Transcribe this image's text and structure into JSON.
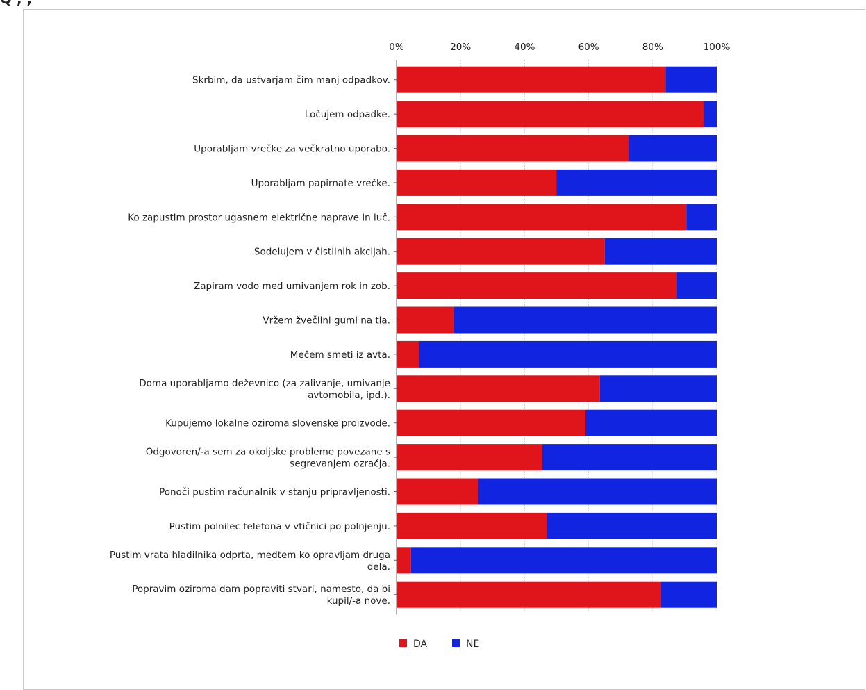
{
  "top_fragment": "Q        , , ",
  "colors": {
    "da": "#e0141b",
    "ne": "#1125e0",
    "grid": "#cfcfcf"
  },
  "chart_data": {
    "type": "bar",
    "orientation": "horizontal",
    "stacked": true,
    "title": "",
    "xlabel": "",
    "ylabel": "",
    "xlim": [
      0,
      100
    ],
    "x_ticks": [
      "0%",
      "20%",
      "40%",
      "60%",
      "80%",
      "100%"
    ],
    "grid": true,
    "legend_position": "bottom",
    "categories": [
      [
        "Skrbim, da ustvarjam čim manj odpadkov."
      ],
      [
        "Ločujem odpadke."
      ],
      [
        "Uporabljam vrečke za večkratno uporabo."
      ],
      [
        "Uporabljam papirnate vrečke."
      ],
      [
        "Ko zapustim prostor ugasnem električne naprave in luč."
      ],
      [
        "Sodelujem v čistilnih akcijah."
      ],
      [
        "Zapiram vodo med umivanjem rok in zob."
      ],
      [
        "Vržem žvečilni gumi na tla."
      ],
      [
        "Mečem smeti iz avta."
      ],
      [
        "Doma uporabljamo deževnico (za zalivanje, umivanje",
        "avtomobila, ipd.)."
      ],
      [
        "Kupujemo lokalne oziroma slovenske proizvode."
      ],
      [
        "Odgovoren/-a sem za okoljske probleme povezane s",
        "segrevanjem ozračja."
      ],
      [
        "Ponoči pustim računalnik v stanju pripravljenosti."
      ],
      [
        "Pustim polnilec telefona v vtičnici po polnjenju."
      ],
      [
        "Pustim vrata hladilnika odprta, medtem ko opravljam druga",
        "dela."
      ],
      [
        "Popravim oziroma dam popraviti stvari, namesto, da bi",
        "kupil/-a nove."
      ]
    ],
    "series": [
      {
        "name": "DA",
        "values": [
          84,
          96,
          72.5,
          50,
          90.5,
          65,
          87.5,
          18,
          7,
          63.5,
          59,
          45.5,
          25.5,
          47,
          4.5,
          82.5
        ]
      },
      {
        "name": "NE",
        "values": [
          16,
          4,
          27.5,
          50,
          9.5,
          35,
          12.5,
          82,
          93,
          36.5,
          41,
          54.5,
          74.5,
          53,
          95.5,
          17.5
        ]
      }
    ]
  }
}
